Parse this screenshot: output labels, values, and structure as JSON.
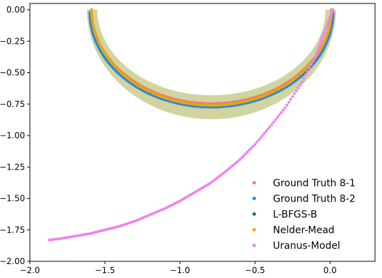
{
  "chart_data": {
    "type": "scatter",
    "title": "",
    "xlabel": "",
    "ylabel": "",
    "xlim": [
      -2.0,
      0.3
    ],
    "ylim": [
      -2.0,
      0.05
    ],
    "xticks": [
      -2.0,
      -1.5,
      -1.0,
      -0.5,
      0.0
    ],
    "xtick_labels": [
      "−2.0",
      "−1.5",
      "−1.0",
      "−0.5",
      "0.0"
    ],
    "yticks": [
      0.0,
      -0.25,
      -0.5,
      -0.75,
      -1.0,
      -1.25,
      -1.5,
      -1.75,
      -2.0
    ],
    "ytick_labels": [
      "0.00",
      "−0.25",
      "−0.50",
      "−0.75",
      "−1.00",
      "−1.25",
      "−1.50",
      "−1.75",
      "−2.00"
    ],
    "grid": false,
    "legend_position": "lower-right",
    "band": {
      "color": "#b9bd6a",
      "center_x": -0.79,
      "outer": {
        "radius_x": 0.83,
        "bottom_y": -0.87
      },
      "inner": {
        "radius_x": 0.76,
        "bottom_y": -0.68
      }
    },
    "series": [
      {
        "name": "Ground Truth 8-1",
        "color": "#e9806e",
        "shape": "arc",
        "center_x": -0.79,
        "radius_x": 0.8,
        "top_y": 0.0,
        "bottom_y": -0.745,
        "points": 140
      },
      {
        "name": "Ground Truth 8-2",
        "color": "#1e88e5",
        "shape": "arc",
        "center_x": -0.79,
        "radius_x": 0.81,
        "top_y": -0.02,
        "bottom_y": -0.775,
        "points": 140
      },
      {
        "name": "L-BFGS-B",
        "color": "#1a7f1a",
        "shape": "arc",
        "center_x": -0.79,
        "radius_x": 0.8,
        "top_y": 0.0,
        "bottom_y": -0.76,
        "points": 140
      },
      {
        "name": "Nelder-Mead",
        "color": "#f5a20a",
        "shape": "arc",
        "center_x": -0.79,
        "radius_x": 0.8,
        "top_y": 0.0,
        "bottom_y": -0.76,
        "points": 140
      },
      {
        "name": "Uranus-Model",
        "color": "#ee82ee",
        "shape": "curve",
        "x": [
          -1.87,
          -1.8,
          -1.7,
          -1.6,
          -1.5,
          -1.4,
          -1.3,
          -1.2,
          -1.1,
          -1.0,
          -0.9,
          -0.8,
          -0.7,
          -0.6,
          -0.5,
          -0.4,
          -0.3,
          -0.2,
          -0.1,
          -0.05,
          0.0,
          0.02
        ],
        "y": [
          -1.83,
          -1.82,
          -1.8,
          -1.78,
          -1.75,
          -1.72,
          -1.68,
          -1.63,
          -1.58,
          -1.52,
          -1.45,
          -1.38,
          -1.29,
          -1.19,
          -1.07,
          -0.93,
          -0.78,
          -0.6,
          -0.38,
          -0.22,
          -0.06,
          0.0
        ]
      }
    ]
  }
}
